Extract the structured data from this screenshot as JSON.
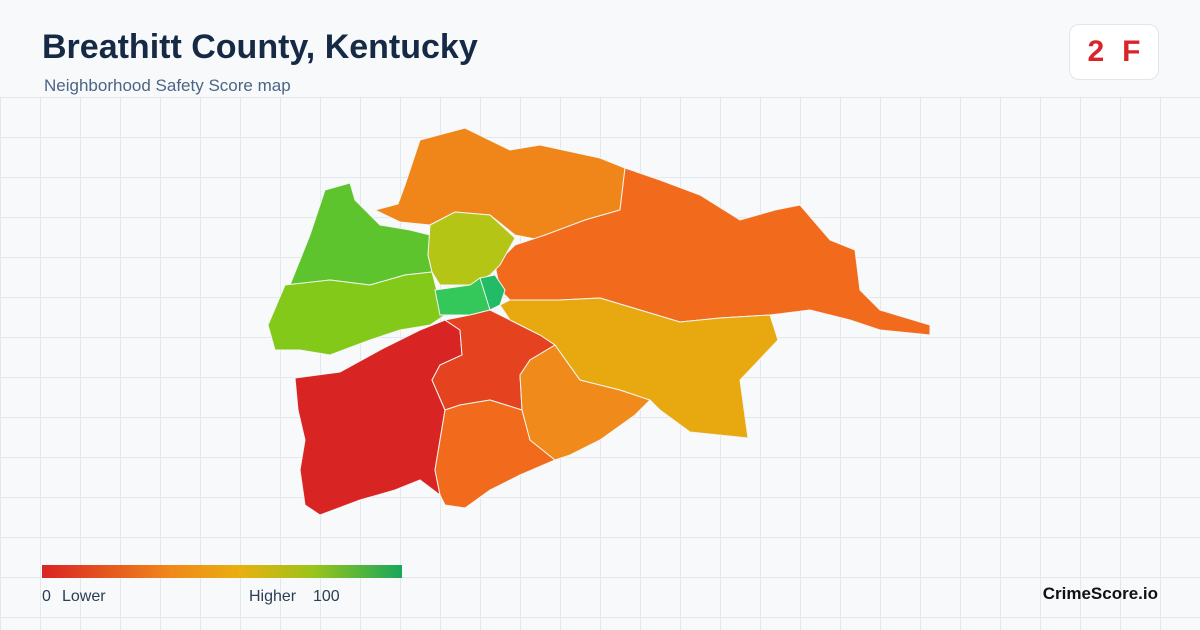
{
  "header": {
    "title": "Breathitt County, Kentucky",
    "subtitle": "Neighborhood Safety Score map"
  },
  "badge": {
    "score": 2,
    "grade": "F"
  },
  "legend": {
    "min": 0,
    "min_label": "Lower",
    "max_label": "Higher",
    "max": 100
  },
  "brand": "CrimeScore.io"
}
